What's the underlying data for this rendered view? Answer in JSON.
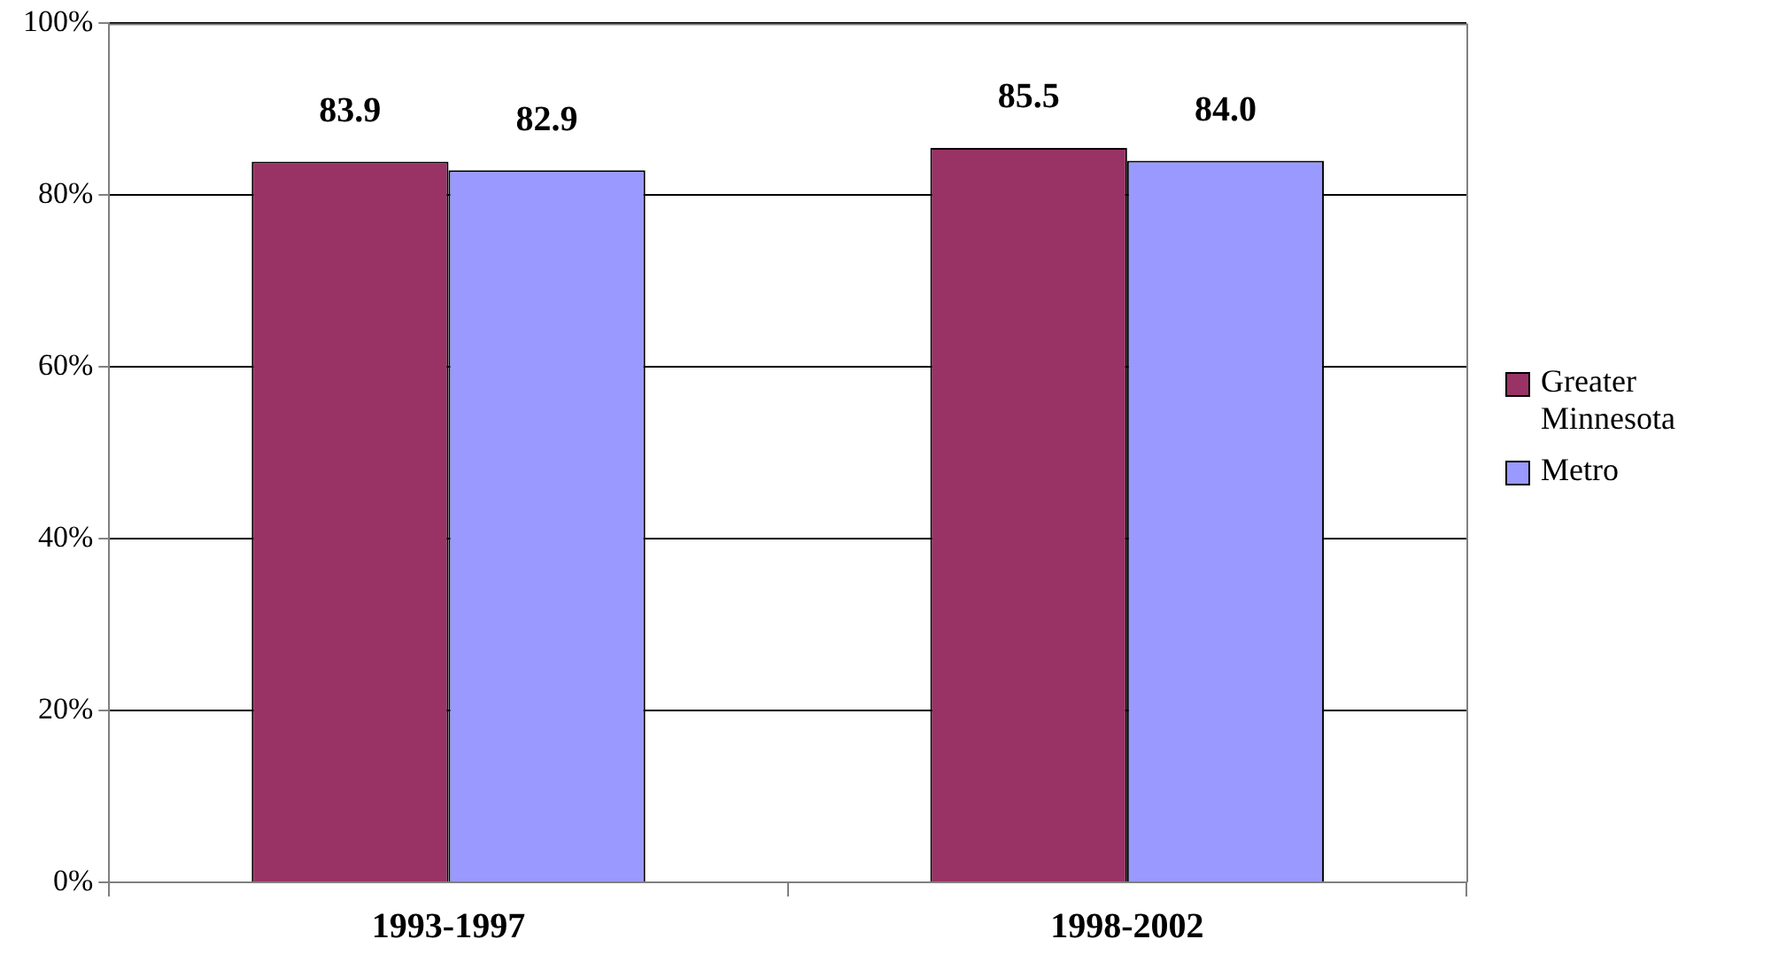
{
  "chart_data": {
    "type": "bar",
    "categories": [
      "1993-1997",
      "1998-2002"
    ],
    "series": [
      {
        "name": "Greater Minnesota",
        "color": "#993366",
        "values": [
          83.9,
          85.5
        ],
        "value_labels": [
          "83.9",
          "85.5"
        ]
      },
      {
        "name": "Metro",
        "color": "#9999ff",
        "values": [
          82.9,
          84.0
        ],
        "value_labels": [
          "82.9",
          "84.0"
        ]
      }
    ],
    "ylim": [
      0,
      100
    ],
    "yticks": [
      {
        "value": 0,
        "label": "0%"
      },
      {
        "value": 20,
        "label": "20%"
      },
      {
        "value": 40,
        "label": "40%"
      },
      {
        "value": 60,
        "label": "60%"
      },
      {
        "value": 80,
        "label": "80%"
      },
      {
        "value": 100,
        "label": "100%"
      }
    ],
    "grid": "y",
    "legend": "right"
  }
}
